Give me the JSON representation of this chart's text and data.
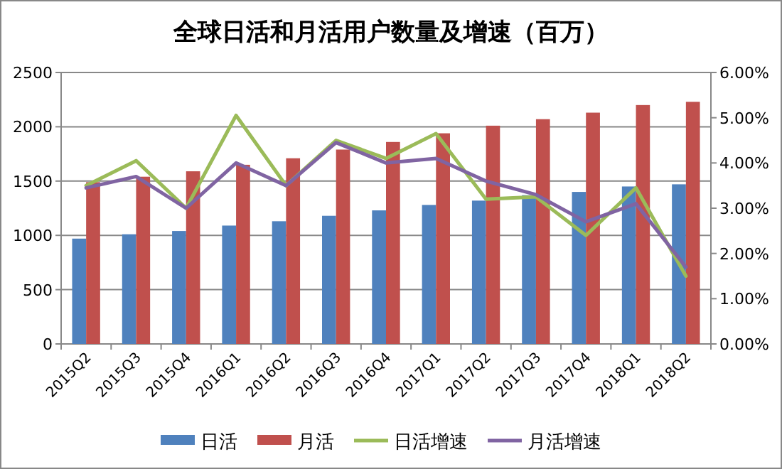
{
  "chart_data": {
    "type": "bar",
    "title": "全球日活和月活用户数量及增速（百万）",
    "categories": [
      "2015Q2",
      "2015Q3",
      "2015Q4",
      "2016Q1",
      "2016Q2",
      "2016Q3",
      "2016Q4",
      "2017Q1",
      "2017Q2",
      "2017Q3",
      "2017Q4",
      "2018Q1",
      "2018Q2"
    ],
    "series": [
      {
        "name": "日活",
        "color": "#4f81bd",
        "values": [
          970,
          1010,
          1040,
          1090,
          1130,
          1180,
          1230,
          1280,
          1320,
          1370,
          1400,
          1450,
          1470
        ]
      },
      {
        "name": "月活",
        "color": "#c0504d",
        "values": [
          1490,
          1540,
          1590,
          1650,
          1710,
          1790,
          1860,
          1940,
          2010,
          2070,
          2130,
          2200,
          2230
        ]
      },
      {
        "name": "日活增速",
        "type": "line",
        "axis": "y2",
        "color": "#9bbb59",
        "values": [
          3.5,
          4.05,
          3.0,
          5.05,
          3.5,
          4.5,
          4.1,
          4.65,
          3.2,
          3.25,
          2.4,
          3.45,
          1.5
        ]
      },
      {
        "name": "月活增速",
        "type": "line",
        "axis": "y2",
        "color": "#8064a2",
        "values": [
          3.45,
          3.7,
          3.0,
          4.0,
          3.5,
          4.45,
          4.0,
          4.1,
          3.6,
          3.3,
          2.7,
          3.1,
          1.7
        ]
      }
    ],
    "ylim": [
      0,
      2500
    ],
    "yticks": [
      0,
      500,
      1000,
      1500,
      2000,
      2500
    ],
    "y2lim": [
      0,
      6
    ],
    "y2ticks": [
      {
        "value": 0,
        "label": "0.00%"
      },
      {
        "value": 1,
        "label": "1.00%"
      },
      {
        "value": 2,
        "label": "2.00%"
      },
      {
        "value": 3,
        "label": "3.00%"
      },
      {
        "value": 4,
        "label": "4.00%"
      },
      {
        "value": 5,
        "label": "5.00%"
      },
      {
        "value": 6,
        "label": "6.00%"
      }
    ],
    "grid": "y",
    "legend": "bottom"
  }
}
